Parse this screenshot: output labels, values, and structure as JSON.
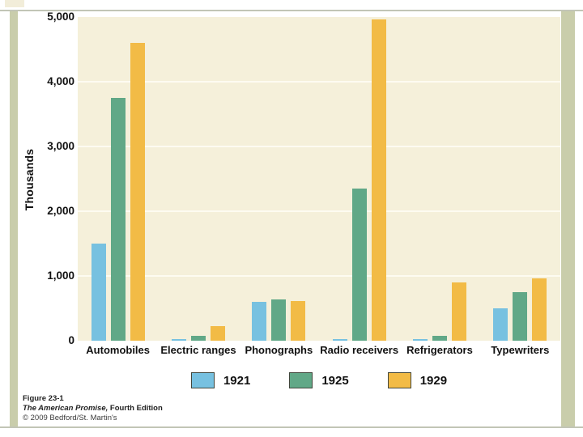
{
  "chart_data": {
    "type": "bar",
    "title": "",
    "ylabel": "Thousands",
    "xlabel": "",
    "ylim": [
      0,
      5000
    ],
    "yticks": [
      0,
      1000,
      2000,
      3000,
      4000,
      5000
    ],
    "ytick_labels": [
      "0",
      "1,000",
      "2,000",
      "3,000",
      "4,000",
      "5,000"
    ],
    "gridlines_at": [
      1000,
      2000,
      3000,
      4000
    ],
    "grid": "horizontal",
    "legend_position": "bottom",
    "categories": [
      "Automobiles",
      "Electric ranges",
      "Phonographs",
      "Radio receivers",
      "Refrigerators",
      "Typewriters"
    ],
    "series": [
      {
        "name": "1921",
        "color": "#77c1e0",
        "values": [
          1500,
          30,
          600,
          25,
          10,
          500
        ]
      },
      {
        "name": "1925",
        "color": "#61a887",
        "values": [
          3750,
          80,
          640,
          2350,
          80,
          750
        ]
      },
      {
        "name": "1929",
        "color": "#f2bb46",
        "values": [
          4600,
          230,
          610,
          4960,
          900,
          960
        ]
      }
    ]
  },
  "caption": {
    "figure_label": "Figure 23-1",
    "book_title": "The American Promise,",
    "edition": " Fourth Edition",
    "copyright": "© 2009 Bedford/St. Martin's"
  },
  "colors": {
    "plot_background": "#f5f0da",
    "gridline": "#fdfbf1",
    "accent_bar": "#c9cdab",
    "frame_rule": "#c2c5b6",
    "corner_tab": "#f2edd9",
    "legend_swatch_border": "#41463c"
  }
}
